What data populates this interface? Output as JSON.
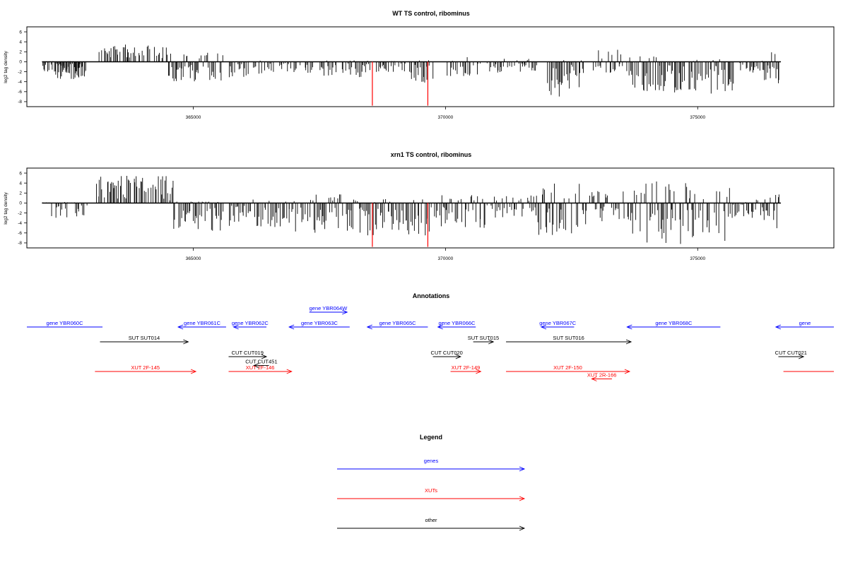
{
  "colors": {
    "gene": "#0000ff",
    "xut": "#ff0000",
    "other": "#000000",
    "highlight": "#ff0000"
  },
  "chart_data": [
    {
      "type": "bar",
      "title": "WT TS control, ribominus",
      "ylabel": "log2 tag density",
      "ylim": [
        -9,
        7
      ],
      "xlim": [
        361700,
        377700
      ],
      "yticks": [
        "6",
        "4",
        "2",
        "0",
        "-2",
        "-4",
        "-6",
        "-8"
      ],
      "xticks": [
        "365000",
        "370000",
        "375000"
      ],
      "grid": false,
      "highlight_x": [
        368550,
        369650
      ],
      "segments": [
        {
          "x0": 362000,
          "x1": 362900,
          "lo": -2.2,
          "hi": 0.2
        },
        {
          "x0": 362200,
          "x1": 362900,
          "lo": -3.5,
          "hi": 0.3
        },
        {
          "x0": 363100,
          "x1": 363600,
          "lo": 0.8,
          "hi": 3.2
        },
        {
          "x0": 363600,
          "x1": 364500,
          "lo": 0.5,
          "hi": 3.5
        },
        {
          "x0": 364500,
          "x1": 365600,
          "lo": -4.0,
          "hi": 1.8
        },
        {
          "x0": 365700,
          "x1": 366600,
          "lo": -3.2,
          "hi": 0.3
        },
        {
          "x0": 366700,
          "x1": 367400,
          "lo": -2.4,
          "hi": 0.3
        },
        {
          "x0": 367500,
          "x1": 368500,
          "lo": -3.2,
          "hi": 0.3
        },
        {
          "x0": 368600,
          "x1": 369300,
          "lo": -2.2,
          "hi": 0.3
        },
        {
          "x0": 369300,
          "x1": 369750,
          "lo": -4.3,
          "hi": 0.3
        },
        {
          "x0": 370000,
          "x1": 370700,
          "lo": -3.0,
          "hi": 1.0
        },
        {
          "x0": 370800,
          "x1": 371800,
          "lo": -2.2,
          "hi": 0.8
        },
        {
          "x0": 372000,
          "x1": 372400,
          "lo": -7.0,
          "hi": 0.4
        },
        {
          "x0": 372400,
          "x1": 372800,
          "lo": -5.8,
          "hi": 0.3
        },
        {
          "x0": 372900,
          "x1": 373600,
          "lo": -2.2,
          "hi": 2.5
        },
        {
          "x0": 373600,
          "x1": 374200,
          "lo": -6.0,
          "hi": 1.5
        },
        {
          "x0": 374200,
          "x1": 375700,
          "lo": -6.5,
          "hi": 0.5
        },
        {
          "x0": 375800,
          "x1": 376300,
          "lo": -2.2,
          "hi": 0.3
        },
        {
          "x0": 376300,
          "x1": 376650,
          "lo": -4.5,
          "hi": 2.0
        }
      ]
    },
    {
      "type": "bar",
      "title": "xrn1 TS control, ribominus",
      "ylabel": "log2 tag density",
      "ylim": [
        -9,
        7
      ],
      "xlim": [
        361700,
        377700
      ],
      "yticks": [
        "6",
        "4",
        "2",
        "0",
        "-2",
        "-4",
        "-6",
        "-8"
      ],
      "xticks": [
        "365000",
        "370000",
        "375000"
      ],
      "grid": false,
      "highlight_x": [
        368550,
        369650
      ],
      "segments": [
        {
          "x0": 362000,
          "x1": 362900,
          "lo": -3.0,
          "hi": 0.2
        },
        {
          "x0": 363000,
          "x1": 364600,
          "lo": 0.5,
          "hi": 5.5
        },
        {
          "x0": 364600,
          "x1": 365600,
          "lo": -6.0,
          "hi": 0.3
        },
        {
          "x0": 365700,
          "x1": 366900,
          "lo": -4.8,
          "hi": 0.8
        },
        {
          "x0": 366900,
          "x1": 368300,
          "lo": -6.0,
          "hi": 1.8
        },
        {
          "x0": 368300,
          "x1": 369700,
          "lo": -6.5,
          "hi": 0.8
        },
        {
          "x0": 369700,
          "x1": 370800,
          "lo": -5.0,
          "hi": 1.8
        },
        {
          "x0": 370800,
          "x1": 371800,
          "lo": -3.0,
          "hi": 1.5
        },
        {
          "x0": 371800,
          "x1": 372700,
          "lo": -6.5,
          "hi": 4.0
        },
        {
          "x0": 372700,
          "x1": 373600,
          "lo": -4.5,
          "hi": 3.0
        },
        {
          "x0": 373600,
          "x1": 374800,
          "lo": -8.5,
          "hi": 4.5
        },
        {
          "x0": 374800,
          "x1": 375700,
          "lo": -8.0,
          "hi": 3.0
        },
        {
          "x0": 375700,
          "x1": 376300,
          "lo": -3.0,
          "hi": 1.0
        },
        {
          "x0": 376300,
          "x1": 376650,
          "lo": -6.0,
          "hi": 2.0
        }
      ]
    }
  ],
  "annotations": {
    "title": "Annotations",
    "features": [
      {
        "label": "gene YBR060C",
        "kind": "gene",
        "x0": 361700,
        "x1": 363200,
        "dir": "none",
        "row": 0
      },
      {
        "label": "gene YBR061C",
        "kind": "gene",
        "x0": 364700,
        "x1": 365650,
        "dir": "left",
        "row": 0
      },
      {
        "label": "gene YBR062C",
        "kind": "gene",
        "x0": 365800,
        "x1": 366450,
        "dir": "left",
        "row": 0
      },
      {
        "label": "gene YBR063C",
        "kind": "gene",
        "x0": 366900,
        "x1": 368100,
        "dir": "left",
        "row": 0
      },
      {
        "label": "gene YBR064W",
        "kind": "gene",
        "x0": 367300,
        "x1": 368050,
        "dir": "right",
        "row": -1
      },
      {
        "label": "gene YBR065C",
        "kind": "gene",
        "x0": 368450,
        "x1": 369650,
        "dir": "left",
        "row": 0
      },
      {
        "label": "gene YBR066C",
        "kind": "gene",
        "x0": 369850,
        "x1": 370600,
        "dir": "left",
        "row": 0
      },
      {
        "label": "gene YBR067C",
        "kind": "gene",
        "x0": 371900,
        "x1": 372550,
        "dir": "left",
        "row": 0
      },
      {
        "label": "gene YBR068C",
        "kind": "gene",
        "x0": 373600,
        "x1": 375450,
        "dir": "left",
        "row": 0
      },
      {
        "label": "gene",
        "kind": "gene",
        "x0": 376550,
        "x1": 377700,
        "dir": "left",
        "row": 0
      },
      {
        "label": "SUT SUT014",
        "kind": "other",
        "x0": 363150,
        "x1": 364900,
        "dir": "right",
        "row": 1
      },
      {
        "label": "SUT SUT015",
        "kind": "other",
        "x0": 370550,
        "x1": 370950,
        "dir": "right",
        "row": 1
      },
      {
        "label": "SUT SUT016",
        "kind": "other",
        "x0": 371200,
        "x1": 373680,
        "dir": "right",
        "row": 1
      },
      {
        "label": "CUT CUT019",
        "kind": "other",
        "x0": 365700,
        "x1": 366450,
        "dir": "right",
        "row": 2
      },
      {
        "label": "CUT CUT451",
        "kind": "other",
        "x0": 366200,
        "x1": 366500,
        "dir": "left",
        "row": 2.6
      },
      {
        "label": "CUT CUT020",
        "kind": "other",
        "x0": 369750,
        "x1": 370300,
        "dir": "right",
        "row": 2
      },
      {
        "label": "CUT CUT021",
        "kind": "other",
        "x0": 376600,
        "x1": 377100,
        "dir": "right",
        "row": 2
      },
      {
        "label": "XUT 2F-145",
        "kind": "xut",
        "x0": 363050,
        "x1": 365050,
        "dir": "right",
        "row": 3
      },
      {
        "label": "XUT 2F-146",
        "kind": "xut",
        "x0": 365700,
        "x1": 366950,
        "dir": "right",
        "row": 3
      },
      {
        "label": "XUT 2F-149",
        "kind": "xut",
        "x0": 370100,
        "x1": 370700,
        "dir": "right",
        "row": 3
      },
      {
        "label": "XUT 2F-150",
        "kind": "xut",
        "x0": 371200,
        "x1": 373650,
        "dir": "right",
        "row": 3
      },
      {
        "label": "XUT 2R-166",
        "kind": "xut",
        "x0": 372900,
        "x1": 373300,
        "dir": "left",
        "row": 3.5
      },
      {
        "label": "",
        "kind": "xut",
        "x0": 376700,
        "x1": 377700,
        "dir": "none",
        "row": 3
      }
    ]
  },
  "legend": {
    "title": "Legend",
    "items": [
      {
        "label": "genes",
        "kind": "gene"
      },
      {
        "label": "XUTs",
        "kind": "xut"
      },
      {
        "label": "other",
        "kind": "other"
      }
    ]
  }
}
